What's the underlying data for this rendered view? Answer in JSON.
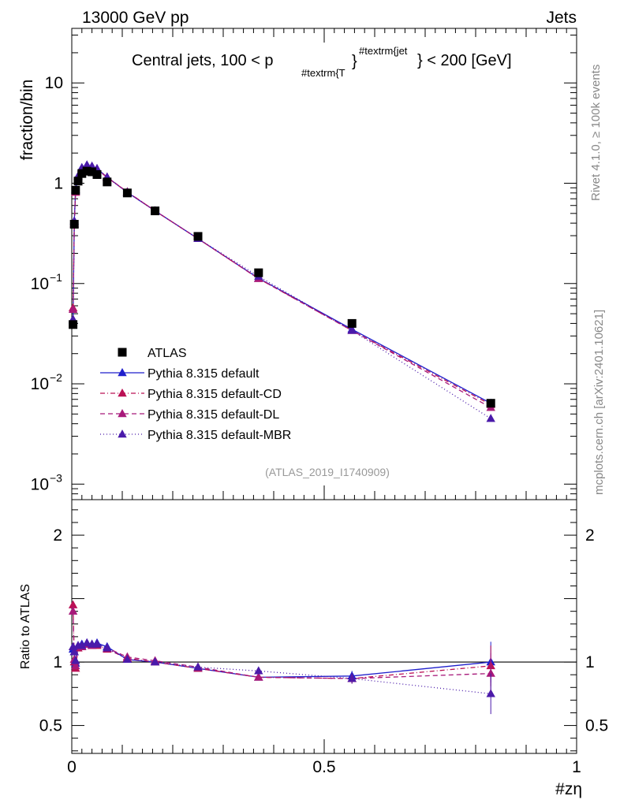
{
  "header": {
    "energy_label": "13000 GeV pp",
    "process_label": "Jets",
    "side_label_top": "Rivet 4.1.0, ≥ 100k events",
    "side_label_bottom": "mcplots.cern.ch [arXiv:2401.10621]",
    "analysis_id": "(ATLAS_2019_I1740909)"
  },
  "chart_data": {
    "type": "line",
    "title": "Central jets, 100 < p",
    "title_sub": "#textrm{T",
    "title_sup": "#textrm{jet",
    "title_tail": "} < 200 [GeV]",
    "xlabel": "#zη",
    "ylabel": "fraction/bin",
    "ratio_ylabel": "Ratio to ATLAS",
    "xlim": [
      0,
      1
    ],
    "ylim": [
      0.0007,
      35
    ],
    "yscale": "log",
    "ratio_ylim": [
      0.28,
      2.28
    ],
    "x_ticks": [
      {
        "value": 0,
        "label": "0"
      },
      {
        "value": 0.5,
        "label": "0.5"
      },
      {
        "value": 1,
        "label": "1"
      }
    ],
    "y_ticks": [
      {
        "value": 10,
        "label": "10",
        "exp": ""
      },
      {
        "value": 1,
        "label": "1",
        "exp": ""
      },
      {
        "value": 0.1,
        "label": "10",
        "exp": "−1"
      },
      {
        "value": 0.01,
        "label": "10",
        "exp": "−2"
      },
      {
        "value": 0.001,
        "label": "10",
        "exp": "−3"
      }
    ],
    "ratio_ticks": [
      {
        "value": 2,
        "label": "2"
      },
      {
        "value": 1,
        "label": "1"
      },
      {
        "value": 0.5,
        "label": "0.5"
      }
    ],
    "x": [
      0.0025,
      0.005,
      0.0075,
      0.0125,
      0.02,
      0.03,
      0.04,
      0.05,
      0.07,
      0.11,
      0.165,
      0.25,
      0.37,
      0.555,
      0.83
    ],
    "data": {
      "name": "ATLAS",
      "color": "#000000",
      "values": [
        0.039,
        0.39,
        0.85,
        1.05,
        1.25,
        1.32,
        1.3,
        1.22,
        1.03,
        0.8,
        0.53,
        0.295,
        0.128,
        0.04,
        0.0064
      ]
    },
    "series": [
      {
        "name": "Pythia 8.315 default",
        "color": "#1f1fcc",
        "dash": "",
        "values": [
          0.043,
          0.42,
          0.84,
          1.18,
          1.43,
          1.52,
          1.48,
          1.4,
          1.15,
          0.81,
          0.53,
          0.28,
          0.113,
          0.035,
          0.0064
        ],
        "ratio": [
          1.1,
          1.08,
          0.99,
          1.12,
          1.14,
          1.15,
          1.14,
          1.15,
          1.12,
          1.02,
          1.0,
          0.95,
          0.88,
          0.89,
          1.0
        ]
      },
      {
        "name": "Pythia 8.315 default-CD",
        "color": "#bb1155",
        "dash": "6,3,1,3",
        "values": [
          0.057,
          0.39,
          0.81,
          1.17,
          1.4,
          1.5,
          1.46,
          1.38,
          1.14,
          0.82,
          0.53,
          0.28,
          0.112,
          0.034,
          0.0062
        ],
        "ratio": [
          1.45,
          1.0,
          0.95,
          1.11,
          1.12,
          1.14,
          1.13,
          1.13,
          1.1,
          1.03,
          1.0,
          0.95,
          0.88,
          0.87,
          0.97
        ]
      },
      {
        "name": "Pythia 8.315 default-DL",
        "color": "#a8197a",
        "dash": "6,4",
        "values": [
          0.055,
          0.4,
          0.82,
          1.17,
          1.41,
          1.5,
          1.47,
          1.39,
          1.15,
          0.82,
          0.53,
          0.28,
          0.112,
          0.034,
          0.0058
        ],
        "ratio": [
          1.4,
          1.02,
          0.97,
          1.12,
          1.12,
          1.14,
          1.13,
          1.14,
          1.11,
          1.04,
          1.01,
          0.96,
          0.88,
          0.87,
          0.91
        ]
      },
      {
        "name": "Pythia 8.315 default-MBR",
        "color": "#4a1aaa",
        "dash": "1,3",
        "values": [
          0.044,
          0.42,
          0.86,
          1.18,
          1.42,
          1.51,
          1.47,
          1.39,
          1.15,
          0.81,
          0.53,
          0.28,
          0.118,
          0.034,
          0.0045
        ],
        "ratio": [
          1.12,
          1.08,
          1.01,
          1.13,
          1.13,
          1.15,
          1.14,
          1.14,
          1.11,
          1.02,
          1.0,
          0.96,
          0.93,
          0.87,
          0.75
        ]
      }
    ]
  }
}
